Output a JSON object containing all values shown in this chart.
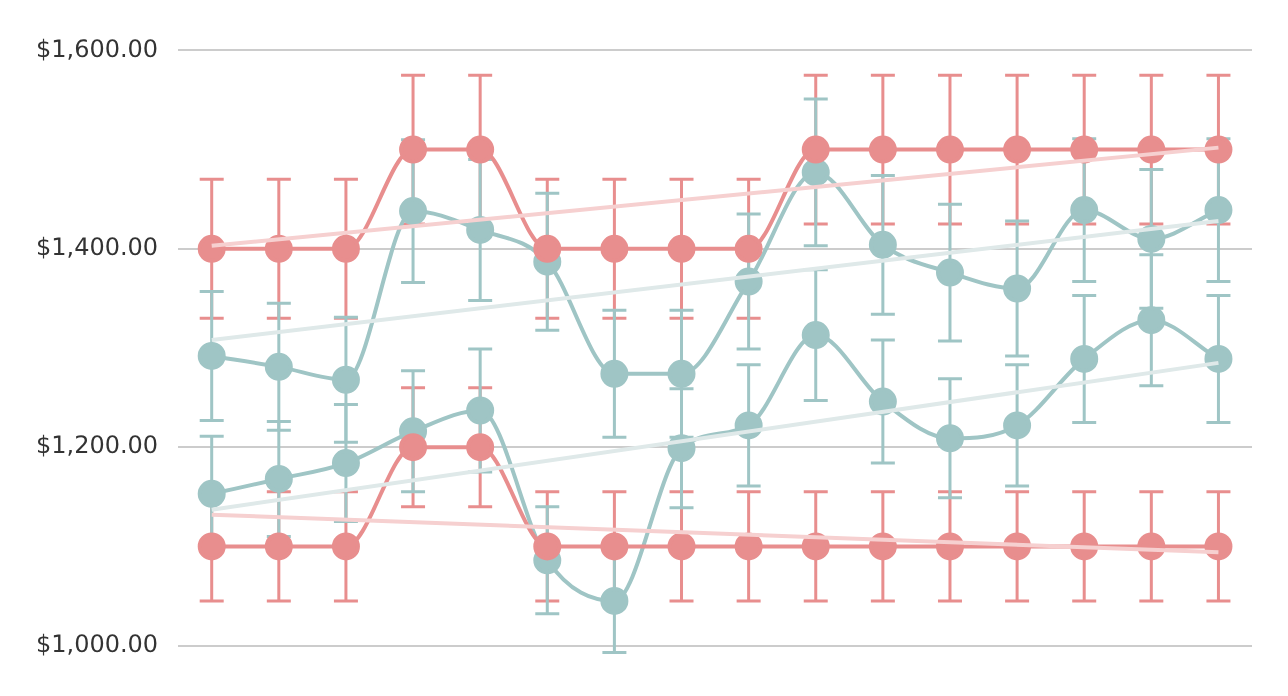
{
  "chart_data": {
    "type": "line",
    "categories": [
      null,
      null,
      null,
      null,
      null,
      null,
      null,
      null,
      null,
      null,
      null,
      null,
      null,
      null,
      null,
      null
    ],
    "ylim": [
      1000,
      1600
    ],
    "yticks": [
      {
        "value": 1000,
        "label": "$1,000.00"
      },
      {
        "value": 1200,
        "label": "$1,200.00"
      },
      {
        "value": 1400,
        "label": "$1,400.00"
      },
      {
        "value": 1600,
        "label": "$1,600.00"
      }
    ],
    "tick_labels": "y",
    "grid": "y",
    "legend": false,
    "marker": "circle",
    "line_style": "solid",
    "series": [
      {
        "type": "line",
        "color": "#f6d0d0",
        "marker": "none",
        "values": [
          1403,
          null,
          null,
          null,
          null,
          null,
          null,
          null,
          null,
          null,
          null,
          null,
          null,
          null,
          null,
          1502
        ]
      },
      {
        "type": "line",
        "color": "#f6d0d0",
        "marker": "none",
        "values": [
          1132,
          null,
          null,
          null,
          null,
          null,
          null,
          null,
          null,
          null,
          null,
          null,
          null,
          null,
          null,
          1094
        ]
      },
      {
        "type": "line",
        "color": "#dfe9e9",
        "marker": "none",
        "values": [
          1308,
          null,
          null,
          null,
          null,
          null,
          null,
          null,
          null,
          null,
          null,
          null,
          null,
          null,
          null,
          1428
        ]
      },
      {
        "type": "line",
        "color": "#dfe9e9",
        "marker": "none",
        "values": [
          1137,
          null,
          null,
          null,
          null,
          null,
          null,
          null,
          null,
          null,
          null,
          null,
          null,
          null,
          null,
          1285
        ]
      },
      {
        "color": "#e88e8e",
        "values": [
          1400,
          1400,
          1400,
          1500,
          1500,
          1400,
          1400,
          1400,
          1400,
          1500,
          1500,
          1500,
          1500,
          1500,
          1500,
          1500
        ],
        "errors": [
          70,
          70,
          70,
          75,
          75,
          70,
          70,
          70,
          70,
          75,
          75,
          75,
          75,
          75,
          75,
          75
        ]
      },
      {
        "color": "#e88e8e",
        "values": [
          1100,
          1100,
          1100,
          1200,
          1200,
          1100,
          1100,
          1100,
          1100,
          1100,
          1100,
          1100,
          1100,
          1100,
          1100,
          1100
        ],
        "errors": [
          55,
          55,
          55,
          60,
          60,
          55,
          55,
          55,
          55,
          55,
          55,
          55,
          55,
          55,
          55,
          55
        ]
      },
      {
        "color": "#9fc5c5",
        "values": [
          1292,
          1281,
          1268,
          1438,
          1419,
          1387,
          1274,
          1274,
          1367,
          1477,
          1404,
          1376,
          1360,
          1439,
          1410,
          1439
        ],
        "errors": [
          65,
          64,
          63,
          72,
          71,
          69,
          64,
          64,
          68,
          74,
          70,
          69,
          68,
          72,
          70,
          72
        ]
      },
      {
        "color": "#9fc5c5",
        "values": [
          1153,
          1168,
          1184,
          1216,
          1237,
          1086,
          1045,
          1199,
          1222,
          1313,
          1246,
          1209,
          1222,
          1289,
          1328,
          1289
        ],
        "errors": [
          58,
          58,
          59,
          61,
          62,
          54,
          52,
          60,
          61,
          66,
          62,
          60,
          61,
          64,
          66,
          64
        ]
      }
    ]
  }
}
